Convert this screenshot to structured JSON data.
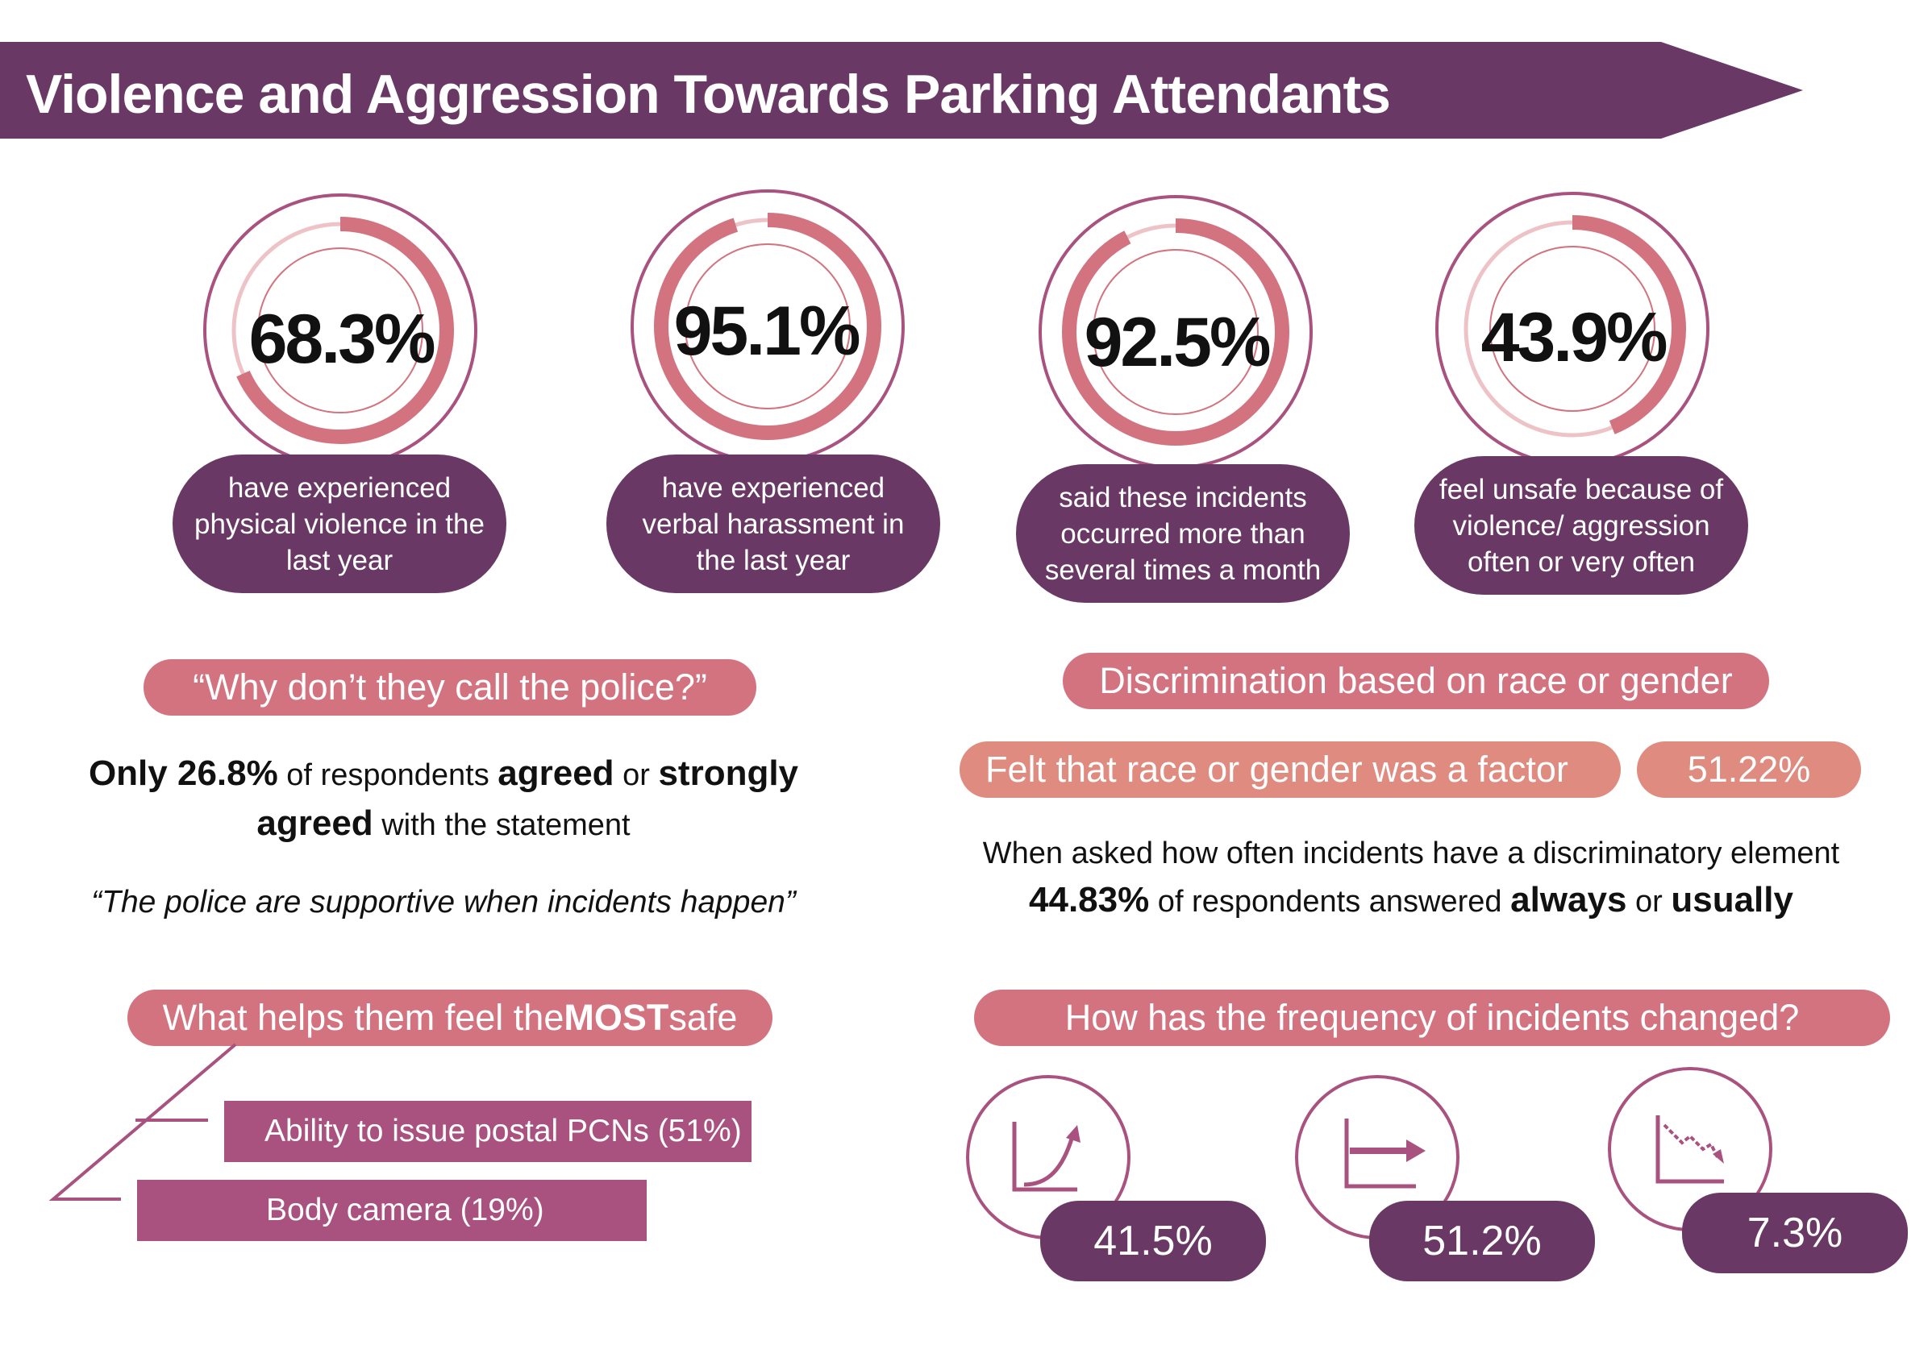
{
  "title": "Violence and Aggression Towards Parking Attendants",
  "colors": {
    "dark_purple": "#693864",
    "pink": "#d3737f",
    "salmon": "#df8b7f",
    "mauve": "#a9527f",
    "ring_light": "#eec3c7"
  },
  "stats": [
    {
      "value": 68.3,
      "label": "68.3%",
      "caption": [
        "have experienced",
        "physical violence in the",
        "last year"
      ]
    },
    {
      "value": 95.1,
      "label": "95.1%",
      "caption": [
        "have experienced",
        "verbal harassment in",
        "the last year"
      ]
    },
    {
      "value": 92.5,
      "label": "92.5%",
      "caption": [
        "said these incidents",
        "occurred more than",
        "several times a month"
      ]
    },
    {
      "value": 43.9,
      "label": "43.9%",
      "caption": [
        "feel unsafe because of",
        "violence/ aggression",
        "often or very often"
      ]
    }
  ],
  "police": {
    "heading": "“Why don’t they call the police?”",
    "only_pct": "Only 26.8%",
    "of_respondents": " of respondents ",
    "agreed": "agreed",
    "or": " or ",
    "strongly": "strongly",
    "agreed2": "agreed",
    "with_statement": " with the statement",
    "quote": "“The police are supportive when incidents happen”"
  },
  "discrimination": {
    "heading": "Discrimination based on race or gender",
    "factor_label": "Felt that race or gender was a factor",
    "factor_value": "51.22%",
    "line1": "When asked how often incidents have a discriminatory element",
    "pct": "44.83%",
    "of_resp": " of respondents answered ",
    "always": "always",
    "or": " or ",
    "usually": "usually"
  },
  "safe": {
    "heading_pre": "What helps them feel the ",
    "heading_bold": "MOST",
    "heading_post": " safe"
  },
  "frequency": {
    "heading": "How has the frequency of incidents changed?"
  },
  "chart_data": [
    {
      "type": "bar",
      "title": "What helps them feel the MOST safe",
      "categories": [
        "Ability to issue postal PCNs (51%)",
        "Body camera (19%)"
      ],
      "values": [
        51,
        19
      ]
    },
    {
      "type": "table",
      "title": "How has the frequency of incidents changed?",
      "items": [
        {
          "icon": "rising-trend-icon",
          "label": "41.5%",
          "value": 41.5
        },
        {
          "icon": "flat-trend-icon",
          "label": "51.2%",
          "value": 51.2
        },
        {
          "icon": "falling-trend-icon",
          "label": "7.3%",
          "value": 7.3
        }
      ]
    }
  ]
}
